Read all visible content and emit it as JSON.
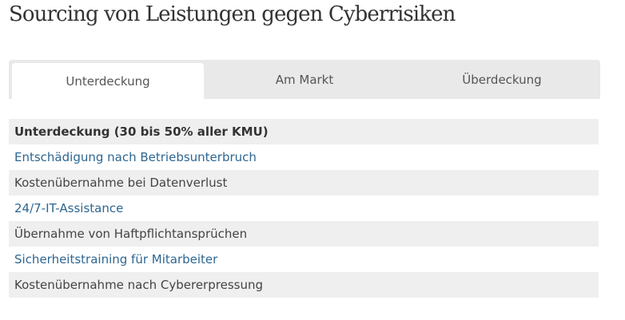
{
  "page": {
    "title": "Sourcing von Leistungen gegen Cyberrisiken"
  },
  "tabs": [
    {
      "label": "Unterdeckung",
      "active": true
    },
    {
      "label": "Am Markt",
      "active": false
    },
    {
      "label": "Überdeckung",
      "active": false
    }
  ],
  "list": {
    "header": "Unterdeckung (30 bis 50% aller KMU)",
    "items": [
      {
        "label": "Entschädigung nach Betriebsunterbruch",
        "link": true
      },
      {
        "label": "Kostenübernahme bei Datenverlust",
        "link": false
      },
      {
        "label": "24/7-IT-Assistance",
        "link": true
      },
      {
        "label": "Übernahme von Haftpflichtansprüchen",
        "link": false
      },
      {
        "label": "Sicherheitstraining für Mitarbeiter",
        "link": true
      },
      {
        "label": "Kostenübernahme nach Cybererpressung",
        "link": false
      }
    ]
  },
  "colors": {
    "link": "#2e6691",
    "text": "#444444",
    "row_shade": "#efefef",
    "tab_bar": "#e9e9e9"
  }
}
